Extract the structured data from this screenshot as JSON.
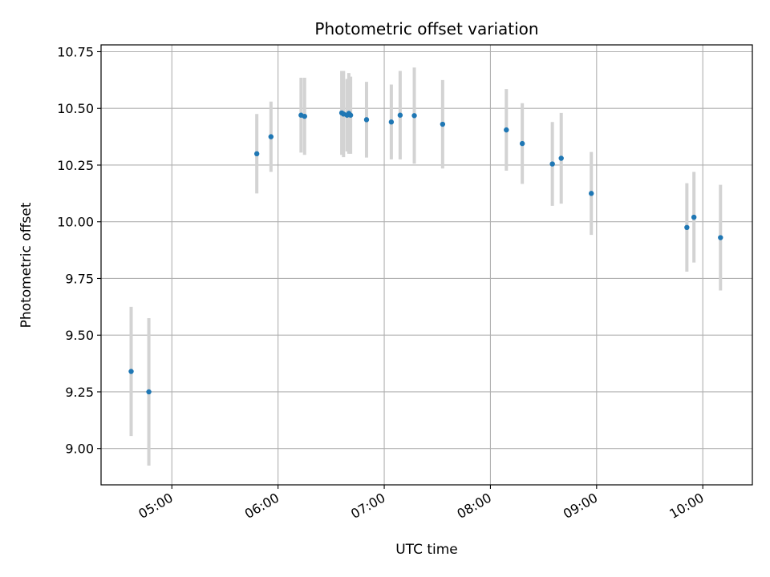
{
  "chart_data": {
    "type": "scatter",
    "title": "Photometric offset variation",
    "xlabel": "UTC time",
    "ylabel": "Photometric offset",
    "x_ticks": [
      "05:00",
      "06:00",
      "07:00",
      "08:00",
      "09:00",
      "10:00"
    ],
    "y_ticks": [
      "9.00",
      "9.25",
      "9.50",
      "9.75",
      "10.00",
      "10.25",
      "10.50",
      "10.75"
    ],
    "xlim": [
      "04:20",
      "10:28"
    ],
    "ylim": [
      8.84,
      10.78
    ],
    "grid": true,
    "marker_color": "#1f77b4",
    "errorbar_color": "#d3d3d3",
    "points": [
      {
        "t": "04:37",
        "y": 9.34,
        "err": 0.285
      },
      {
        "t": "04:47",
        "y": 9.25,
        "err": 0.325
      },
      {
        "t": "05:48",
        "y": 10.3,
        "err": 0.175
      },
      {
        "t": "05:56",
        "y": 10.375,
        "err": 0.155
      },
      {
        "t": "06:13",
        "y": 10.47,
        "err": 0.165
      },
      {
        "t": "06:15",
        "y": 10.465,
        "err": 0.17
      },
      {
        "t": "06:36",
        "y": 10.48,
        "err": 0.185
      },
      {
        "t": "06:37",
        "y": 10.475,
        "err": 0.19
      },
      {
        "t": "06:39",
        "y": 10.47,
        "err": 0.16
      },
      {
        "t": "06:40",
        "y": 10.478,
        "err": 0.178
      },
      {
        "t": "06:41",
        "y": 10.47,
        "err": 0.17
      },
      {
        "t": "06:50",
        "y": 10.45,
        "err": 0.167
      },
      {
        "t": "07:04",
        "y": 10.44,
        "err": 0.165
      },
      {
        "t": "07:09",
        "y": 10.47,
        "err": 0.195
      },
      {
        "t": "07:17",
        "y": 10.468,
        "err": 0.212
      },
      {
        "t": "07:33",
        "y": 10.43,
        "err": 0.195
      },
      {
        "t": "08:09",
        "y": 10.405,
        "err": 0.18
      },
      {
        "t": "08:18",
        "y": 10.345,
        "err": 0.178
      },
      {
        "t": "08:35",
        "y": 10.255,
        "err": 0.185
      },
      {
        "t": "08:40",
        "y": 10.28,
        "err": 0.2
      },
      {
        "t": "08:57",
        "y": 10.125,
        "err": 0.183
      },
      {
        "t": "09:51",
        "y": 9.975,
        "err": 0.195
      },
      {
        "t": "09:55",
        "y": 10.02,
        "err": 0.2
      },
      {
        "t": "10:10",
        "y": 9.93,
        "err": 0.233
      }
    ]
  }
}
